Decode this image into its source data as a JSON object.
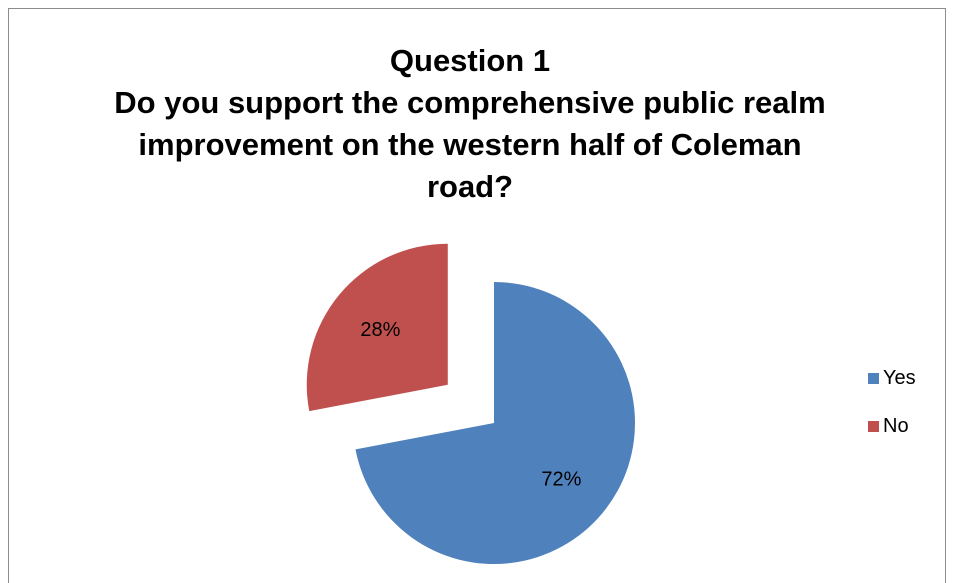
{
  "chart_data": {
    "type": "pie",
    "title_lines": [
      "Question 1",
      "Do you support the comprehensive public realm",
      "improvement on the western half of Coleman",
      "road?"
    ],
    "categories": [
      "Yes",
      "No"
    ],
    "values": [
      72,
      28
    ],
    "data_labels": [
      "72%",
      "28%"
    ],
    "colors": [
      "#4f81bd",
      "#c0504d"
    ],
    "exploded": [
      false,
      true
    ],
    "legend_position": "right"
  }
}
